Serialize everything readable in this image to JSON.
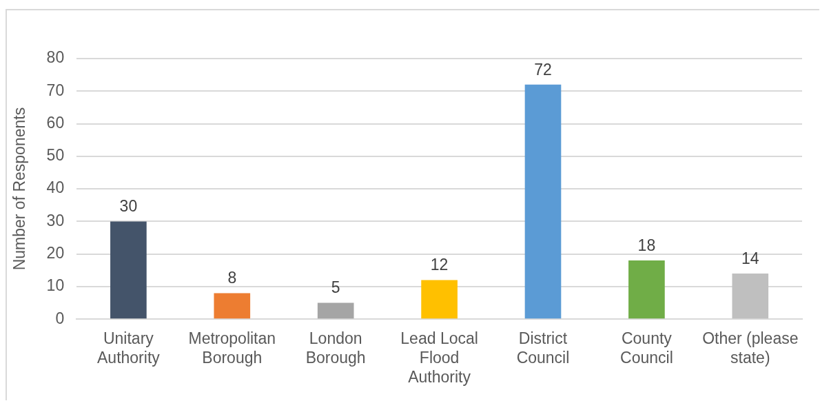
{
  "chart_data": {
    "type": "bar",
    "ylabel": "Number of Responents",
    "categories": [
      "Unitary Authority",
      "Metropolitan Borough",
      "London Borough",
      "Lead Local Flood Authority",
      "District Council",
      "County Council",
      "Other (please state)"
    ],
    "values": [
      30,
      8,
      5,
      12,
      72,
      18,
      14
    ],
    "colors": [
      "#44546a",
      "#ed7d31",
      "#a5a5a5",
      "#ffc000",
      "#5b9bd5",
      "#70ad47",
      "#bfbfbf"
    ],
    "ylim": [
      0,
      80
    ],
    "yticks": [
      0,
      10,
      20,
      30,
      40,
      50,
      60,
      70,
      80
    ],
    "grid": "y",
    "data_labels": true
  }
}
